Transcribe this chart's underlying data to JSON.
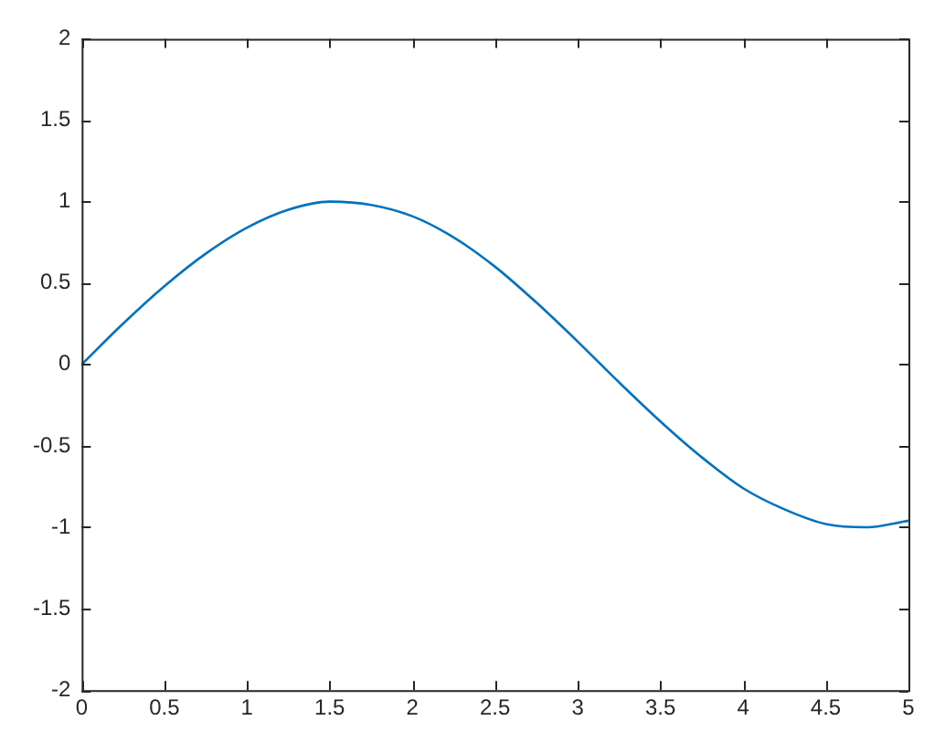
{
  "chart_data": {
    "type": "line",
    "x": [
      0,
      0.25,
      0.5,
      0.75,
      1,
      1.25,
      1.5,
      1.75,
      2,
      2.25,
      2.5,
      2.75,
      3,
      3.25,
      3.5,
      3.75,
      4,
      4.25,
      4.5,
      4.75,
      5
    ],
    "series": [
      {
        "color": "#0072bd",
        "values": [
          0,
          0.25,
          0.48,
          0.68,
          0.84,
          0.95,
          1.0,
          0.98,
          0.91,
          0.78,
          0.6,
          0.38,
          0.14,
          -0.11,
          -0.35,
          -0.57,
          -0.76,
          -0.89,
          -0.98,
          -1.0,
          -0.96
        ]
      }
    ],
    "xlim": [
      0,
      5
    ],
    "xticks": [
      0,
      0.5,
      1,
      1.5,
      2,
      2.5,
      3,
      3.5,
      4,
      4.5,
      5
    ],
    "ylim": [
      -2,
      2
    ],
    "yticks": [
      -2,
      -1.5,
      -1,
      -0.5,
      0,
      0.5,
      1,
      1.5,
      2
    ],
    "grid": false,
    "legend": false,
    "marker": "none",
    "line_style": "solid"
  }
}
